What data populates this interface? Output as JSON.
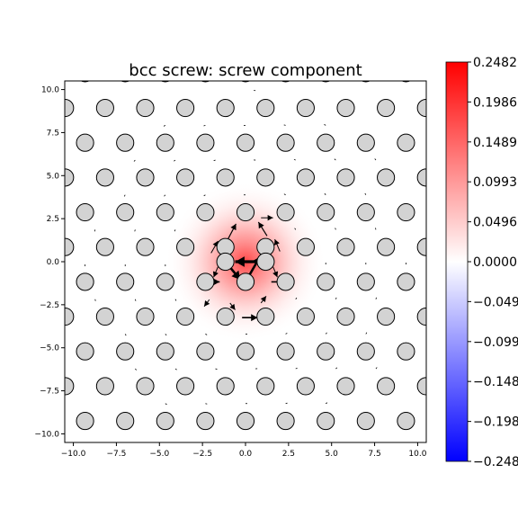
{
  "chart_data": {
    "type": "quiver-field",
    "title": "bcc screw: screw component",
    "xlim": [
      -10.5,
      10.5
    ],
    "ylim": [
      -10.5,
      10.5
    ],
    "xticks": [
      -10.0,
      -7.5,
      -5.0,
      -2.5,
      0.0,
      2.5,
      5.0,
      7.5,
      10.0
    ],
    "yticks": [
      -10.0,
      -7.5,
      -5.0,
      -2.5,
      0.0,
      2.5,
      5.0,
      7.5,
      10.0
    ],
    "xtick_labels": [
      "−10.0",
      "−7.5",
      "−5.0",
      "−2.5",
      "0.0",
      "2.5",
      "5.0",
      "7.5",
      "10.0"
    ],
    "ytick_labels": [
      "−10.0",
      "−7.5",
      "−5.0",
      "−2.5",
      "0.0",
      "2.5",
      "5.0",
      "7.5",
      "10.0"
    ],
    "lattice": {
      "row_spacing": 2.02,
      "col_spacing": 2.33,
      "row_offset": 1.165,
      "origin_row_y": -1.17,
      "origin_col_x": 0.0,
      "atom_radius": 0.5
    },
    "core": {
      "center": [
        0.0,
        0.0
      ],
      "sigma": 1.8
    },
    "colorbar": {
      "min": -0.2482,
      "max": 0.2482,
      "tick_values": [
        0.2482,
        0.1986,
        0.1489,
        0.0993,
        0.0496,
        0.0,
        -0.0496,
        -0.0993,
        -0.1489,
        -0.1986,
        -0.2482
      ],
      "tick_labels": [
        "0.2482",
        "0.1986",
        "0.1489",
        "0.0993",
        "0.0496",
        "0.0000",
        "−0.049",
        "−0.099",
        "−0.148",
        "−0.198",
        "−0.248"
      ],
      "colors": [
        "#0000ff",
        "#ffffff",
        "#ff0000"
      ]
    },
    "arrows": [
      {
        "from": [
          1.17,
          0.0
        ],
        "to": [
          -0.6,
          0.0
        ],
        "width": 3.2
      },
      {
        "from": [
          -1.17,
          0.0
        ],
        "to": [
          -0.3,
          -1.05
        ],
        "width": 2.6
      },
      {
        "from": [
          0.0,
          -1.17
        ],
        "to": [
          0.85,
          0.3
        ],
        "width": 2.6
      },
      {
        "from": [
          -1.0,
          1.35
        ],
        "to": [
          -0.55,
          2.2
        ],
        "width": 1.2
      },
      {
        "from": [
          1.25,
          1.5
        ],
        "to": [
          0.75,
          2.3
        ],
        "width": 1.2
      },
      {
        "from": [
          -2.0,
          0.5
        ],
        "to": [
          -1.6,
          1.2
        ],
        "width": 1.0
      },
      {
        "from": [
          2.0,
          0.6
        ],
        "to": [
          1.7,
          1.3
        ],
        "width": 1.0
      },
      {
        "from": [
          -1.6,
          -0.3
        ],
        "to": [
          -1.85,
          -0.9
        ],
        "width": 1.0
      },
      {
        "from": [
          1.6,
          -0.3
        ],
        "to": [
          1.85,
          -0.9
        ],
        "width": 1.0
      },
      {
        "from": [
          -2.4,
          -1.17
        ],
        "to": [
          -1.5,
          -1.17
        ],
        "width": 1.6
      },
      {
        "from": [
          1.5,
          -1.17
        ],
        "to": [
          2.4,
          -1.17
        ],
        "width": 1.6
      },
      {
        "from": [
          -0.2,
          -3.25
        ],
        "to": [
          0.7,
          -3.25
        ],
        "width": 1.6
      },
      {
        "from": [
          -0.9,
          -2.4
        ],
        "to": [
          -0.6,
          -2.8
        ],
        "width": 1.0
      },
      {
        "from": [
          0.9,
          -2.4
        ],
        "to": [
          1.2,
          -2.0
        ],
        "width": 1.0
      },
      {
        "from": [
          0.9,
          2.55
        ],
        "to": [
          1.6,
          2.55
        ],
        "width": 1.0
      },
      {
        "from": [
          -2.1,
          -2.2
        ],
        "to": [
          -2.4,
          -2.6
        ],
        "width": 1.0
      }
    ]
  }
}
